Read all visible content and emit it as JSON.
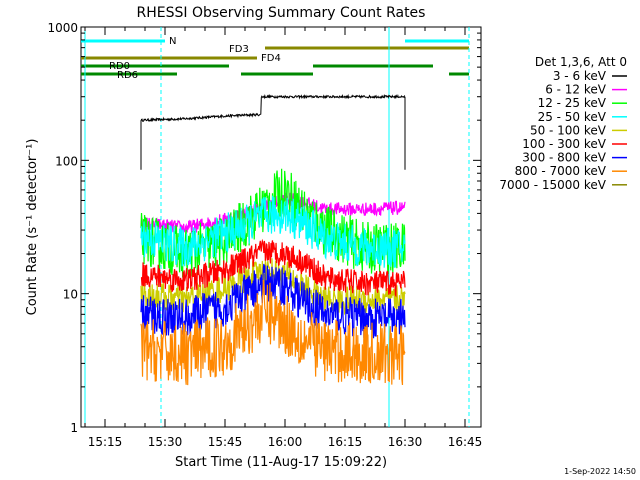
{
  "chart_data": {
    "type": "line",
    "title": "RHESSI Observing Summary Count Rates",
    "xlabel": "Start Time (11-Aug-17 15:09:22)",
    "ylabel": "Count Rate (s⁻¹ detector⁻¹)",
    "y_scale": "log",
    "ylim": [
      1,
      1000
    ],
    "xlim": [
      "15:09",
      "16:49"
    ],
    "x_ticks": [
      "15:15",
      "15:30",
      "15:45",
      "16:00",
      "16:15",
      "16:30",
      "16:45"
    ],
    "y_ticks": [
      "1",
      "10",
      "100",
      "1000"
    ],
    "legend_title": "Det 1,3,6, Att 0",
    "legend_position": "right",
    "series": [
      {
        "name": "3 - 6 keV",
        "color": "#000000",
        "x": [
          "15:24",
          "15:35",
          "15:45",
          "15:53",
          "15:54",
          "16:00",
          "16:10",
          "16:20",
          "16:30"
        ],
        "values": [
          200,
          205,
          215,
          220,
          300,
          300,
          300,
          300,
          300
        ]
      },
      {
        "name": "6 - 12 keV",
        "color": "#ff00ff",
        "x": [
          "15:24",
          "15:35",
          "15:45",
          "15:55",
          "16:00",
          "16:05",
          "16:10",
          "16:20",
          "16:30"
        ],
        "values": [
          34,
          31,
          36,
          45,
          52,
          48,
          43,
          43,
          44
        ]
      },
      {
        "name": "12 - 25 keV",
        "color": "#00ff00",
        "x": [
          "15:24",
          "15:35",
          "15:45",
          "15:55",
          "16:00",
          "16:05",
          "16:10",
          "16:20",
          "16:30"
        ],
        "values": [
          26,
          20,
          25,
          45,
          60,
          40,
          30,
          22,
          22
        ]
      },
      {
        "name": "25 - 50 keV",
        "color": "#00ffff",
        "x": [
          "15:24",
          "15:35",
          "15:45",
          "15:55",
          "16:00",
          "16:05",
          "16:10",
          "16:20",
          "16:30"
        ],
        "values": [
          27,
          22,
          28,
          38,
          40,
          33,
          26,
          22,
          22
        ]
      },
      {
        "name": "50 - 100 keV",
        "color": "#cccc00",
        "x": [
          "15:24",
          "15:35",
          "15:45",
          "15:55",
          "16:00",
          "16:05",
          "16:10",
          "16:20",
          "16:30"
        ],
        "values": [
          10,
          9,
          11,
          15,
          14,
          11,
          9,
          9,
          9
        ]
      },
      {
        "name": "100 - 300 keV",
        "color": "#ff0000",
        "x": [
          "15:24",
          "15:35",
          "15:45",
          "15:55",
          "16:00",
          "16:05",
          "16:10",
          "16:20",
          "16:30"
        ],
        "values": [
          14,
          12.5,
          15,
          21,
          20,
          17,
          13,
          12,
          12
        ]
      },
      {
        "name": "300 - 800 keV",
        "color": "#0000ff",
        "x": [
          "15:24",
          "15:35",
          "15:45",
          "15:55",
          "16:00",
          "16:05",
          "16:10",
          "16:20",
          "16:30"
        ],
        "values": [
          7,
          6.5,
          8,
          12,
          11.5,
          8.5,
          7,
          6.5,
          6.5
        ]
      },
      {
        "name": "800 - 7000 keV",
        "color": "#ff8800",
        "x": [
          "15:24",
          "15:35",
          "15:45",
          "15:55",
          "16:00",
          "16:05",
          "16:10",
          "16:20",
          "16:30"
        ],
        "values": [
          3.8,
          3.5,
          4.2,
          7.5,
          6,
          4.5,
          3.8,
          3.5,
          3.5
        ]
      },
      {
        "name": "7000 - 15000 keV",
        "color": "#888800",
        "x": [],
        "values": []
      }
    ],
    "flags": [
      {
        "label": "N",
        "color": "#00ffff",
        "segments": [
          [
            "15:09",
            "15:30"
          ],
          [
            "16:30",
            "16:46"
          ]
        ]
      },
      {
        "label": "FD3",
        "color": "#888800",
        "segments": [
          [
            "15:55",
            "16:46"
          ]
        ]
      },
      {
        "label": "FD4",
        "color": "#888800",
        "segments": [
          [
            "15:09",
            "15:53"
          ]
        ]
      },
      {
        "label": "RD0",
        "color": "#008800",
        "segments": [
          [
            "15:09",
            "15:46"
          ],
          [
            "16:07",
            "16:37"
          ]
        ]
      },
      {
        "label": "RD6",
        "color": "#008800",
        "segments": [
          [
            "15:09",
            "15:33"
          ],
          [
            "15:49",
            "16:07"
          ],
          [
            "16:41",
            "16:46"
          ]
        ]
      }
    ],
    "marker_lines": [
      {
        "x": "15:10",
        "style": "solid",
        "color": "#00ffff"
      },
      {
        "x": "15:29",
        "style": "dashed",
        "color": "#00ffff"
      },
      {
        "x": "16:26",
        "style": "solid",
        "color": "#00ffff"
      },
      {
        "x": "16:46",
        "style": "dashed",
        "color": "#00ffff"
      }
    ]
  },
  "footer": {
    "date": "1-Sep-2022 14:50"
  }
}
